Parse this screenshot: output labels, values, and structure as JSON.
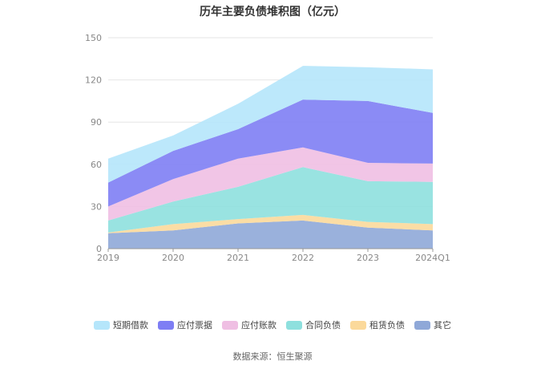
{
  "chart_data": {
    "type": "area",
    "stacked": true,
    "title": "历年主要负债堆积图（亿元）",
    "categories": [
      "2019",
      "2020",
      "2021",
      "2022",
      "2023",
      "2024Q1"
    ],
    "ylim": [
      0,
      150
    ],
    "yticks": [
      0,
      30,
      60,
      90,
      120,
      150
    ],
    "grid": true,
    "legend_position": "bottom",
    "series": [
      {
        "name": "其它",
        "color": "#8fa8d8",
        "values": [
          11,
          13,
          18,
          20,
          15,
          13
        ]
      },
      {
        "name": "租赁负债",
        "color": "#fbd99b",
        "values": [
          0.5,
          4.5,
          3,
          4,
          4,
          4.5
        ]
      },
      {
        "name": "合同负债",
        "color": "#8ee0de",
        "values": [
          8.5,
          16,
          23,
          34,
          29,
          30
        ]
      },
      {
        "name": "应付账款",
        "color": "#efbfe3",
        "values": [
          10,
          16,
          20,
          14,
          13,
          13
        ]
      },
      {
        "name": "应付票据",
        "color": "#7e7ef4",
        "values": [
          17,
          20,
          21,
          34,
          44,
          36
        ]
      },
      {
        "name": "短期借款",
        "color": "#b5e6fb",
        "values": [
          17,
          11,
          18,
          24,
          24,
          31
        ]
      }
    ]
  },
  "legend_order": [
    "短期借款",
    "应付票据",
    "应付账款",
    "合同负债",
    "租赁负债",
    "其它"
  ],
  "source_text": "数据来源：恒生聚源"
}
